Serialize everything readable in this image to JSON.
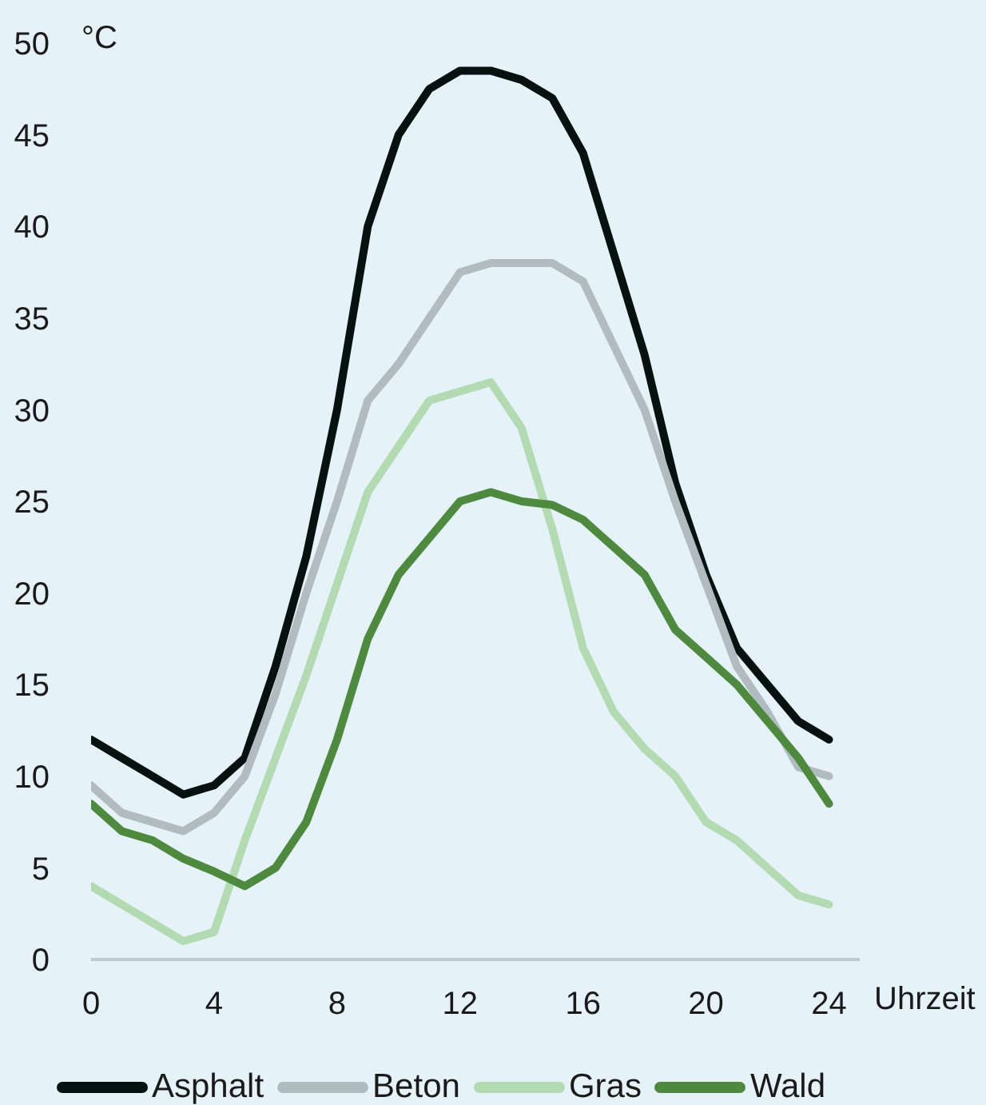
{
  "chart_data": {
    "type": "line",
    "xlabel": "Uhrzeit",
    "ylabel": "°C",
    "x": [
      0,
      1,
      2,
      3,
      4,
      5,
      6,
      7,
      8,
      9,
      10,
      11,
      12,
      13,
      14,
      15,
      16,
      17,
      18,
      19,
      20,
      21,
      22,
      23,
      24
    ],
    "xlim": [
      0,
      25
    ],
    "xticks": [
      0,
      4,
      8,
      12,
      16,
      20,
      24
    ],
    "ylim": [
      0,
      50
    ],
    "yticks": [
      0,
      5,
      10,
      15,
      20,
      25,
      30,
      35,
      40,
      45,
      50
    ],
    "marker": "none",
    "line_style": "solid",
    "legend": "bottom",
    "series": [
      {
        "name": "Asphalt",
        "color": "#061210",
        "values": [
          12,
          11,
          10,
          9,
          9.5,
          11,
          16,
          22,
          30,
          40,
          45,
          47.5,
          48.5,
          48.5,
          48,
          47,
          44,
          38.5,
          33,
          26,
          21,
          17,
          15,
          13,
          12
        ]
      },
      {
        "name": "Beton",
        "color": "#b0bcc0",
        "values": [
          9.5,
          8,
          7.5,
          7,
          8,
          10,
          14.5,
          20,
          25,
          30.5,
          32.5,
          35,
          37.5,
          38,
          38,
          38,
          37,
          33.5,
          30,
          25,
          20.5,
          16,
          13.5,
          10.5,
          10
        ]
      },
      {
        "name": "Gras",
        "color": "#b2dbb2",
        "values": [
          4,
          3,
          2,
          1,
          1.5,
          6.5,
          11,
          15.5,
          20.5,
          25.5,
          28,
          30.5,
          31,
          31.5,
          29,
          23.5,
          17,
          13.5,
          11.5,
          10,
          7.5,
          6.5,
          5,
          3.5,
          3
        ]
      },
      {
        "name": "Wald",
        "color": "#4e8a3e",
        "values": [
          8.5,
          7,
          6.5,
          5.5,
          4.8,
          4,
          5,
          7.5,
          12,
          17.5,
          21,
          23,
          25,
          25.5,
          25,
          24.8,
          24,
          22.5,
          21,
          18,
          16.5,
          15,
          13,
          11,
          8.5
        ]
      }
    ]
  }
}
